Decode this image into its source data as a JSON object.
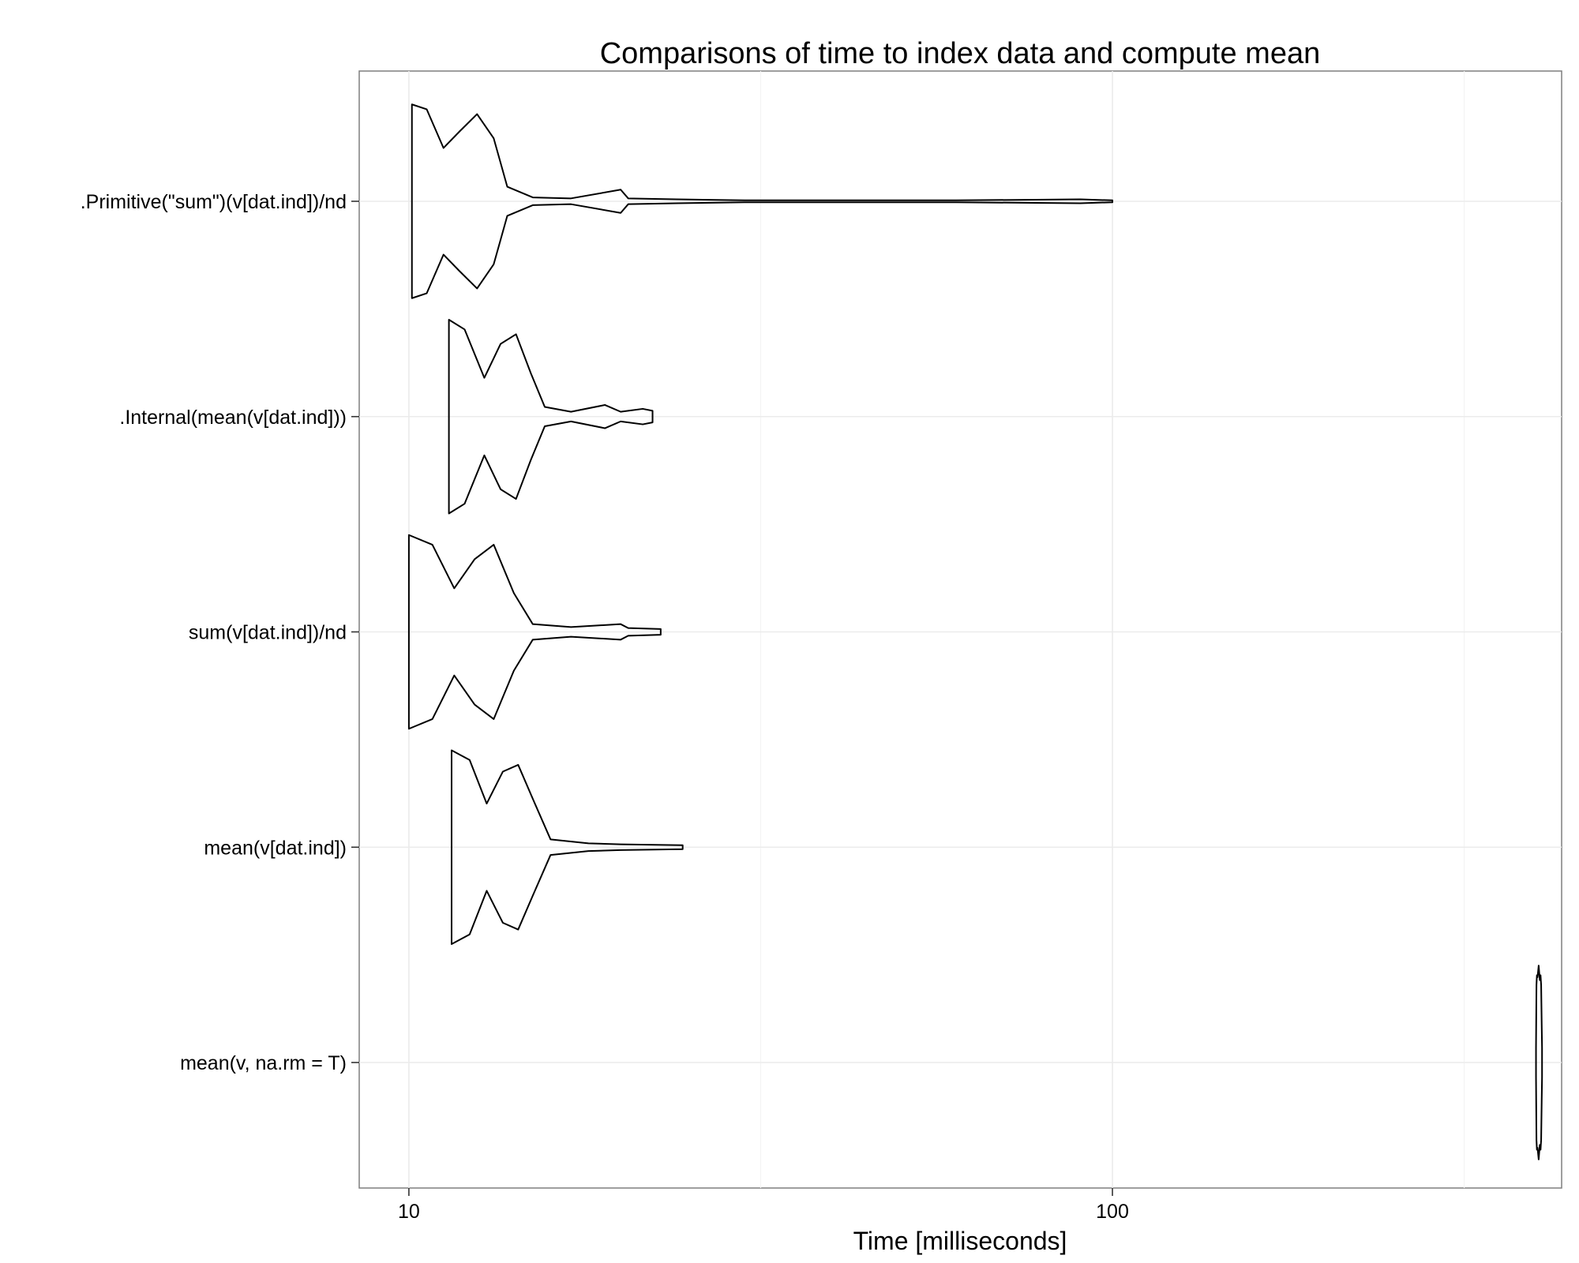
{
  "chart_data": {
    "type": "violin",
    "title": "Comparisons of time to index data and compute mean",
    "xlabel": "Time [milliseconds]",
    "ylabel": "",
    "x_scale": "log10",
    "xlim": [
      8.5,
      435
    ],
    "x_ticks": [
      10,
      100
    ],
    "x_tick_labels": [
      "10",
      "100"
    ],
    "grid": true,
    "categories": [
      ".Primitive(\"sum\")(v[dat.ind])/nd",
      ".Internal(mean(v[dat.ind]))",
      "sum(v[dat.ind])/nd",
      "mean(v[dat.ind])",
      "mean(v, na.rm = T)"
    ],
    "series": [
      {
        "category": ".Primitive(\"sum\")(v[dat.ind])/nd",
        "min": 10.1,
        "max": 100,
        "median": 12.5,
        "density": [
          [
            10.1,
            1.0
          ],
          [
            10.6,
            0.95
          ],
          [
            11.2,
            0.55
          ],
          [
            11.8,
            0.72
          ],
          [
            12.5,
            0.9
          ],
          [
            13.2,
            0.65
          ],
          [
            13.8,
            0.15
          ],
          [
            15,
            0.04
          ],
          [
            17,
            0.03
          ],
          [
            20,
            0.12
          ],
          [
            20.5,
            0.03
          ],
          [
            24,
            0.02
          ],
          [
            30,
            0.01
          ],
          [
            60,
            0.01
          ],
          [
            90,
            0.02
          ],
          [
            100,
            0.01
          ]
        ]
      },
      {
        "category": ".Internal(mean(v[dat.ind]))",
        "min": 11.4,
        "max": 22.2,
        "median": 13.9,
        "density": [
          [
            11.4,
            1.0
          ],
          [
            12,
            0.9
          ],
          [
            12.8,
            0.4
          ],
          [
            13.5,
            0.75
          ],
          [
            14.2,
            0.85
          ],
          [
            14.9,
            0.45
          ],
          [
            15.6,
            0.1
          ],
          [
            17,
            0.05
          ],
          [
            19,
            0.12
          ],
          [
            20,
            0.05
          ],
          [
            21.5,
            0.08
          ],
          [
            22.2,
            0.06
          ]
        ]
      },
      {
        "category": "sum(v[dat.ind])/nd",
        "min": 10,
        "max": 22.8,
        "median": 12.6,
        "density": [
          [
            10,
            1.0
          ],
          [
            10.8,
            0.9
          ],
          [
            11.6,
            0.45
          ],
          [
            12.4,
            0.75
          ],
          [
            13.2,
            0.9
          ],
          [
            14.1,
            0.4
          ],
          [
            15,
            0.08
          ],
          [
            17,
            0.05
          ],
          [
            20,
            0.08
          ],
          [
            20.5,
            0.04
          ],
          [
            22.8,
            0.03
          ]
        ]
      },
      {
        "category": "mean(v[dat.ind])",
        "min": 11.5,
        "max": 24.5,
        "median": 14.0,
        "density": [
          [
            11.5,
            1.0
          ],
          [
            12.2,
            0.9
          ],
          [
            12.9,
            0.45
          ],
          [
            13.6,
            0.78
          ],
          [
            14.3,
            0.85
          ],
          [
            15,
            0.5
          ],
          [
            15.9,
            0.08
          ],
          [
            18,
            0.04
          ],
          [
            20,
            0.03
          ],
          [
            24.5,
            0.02
          ]
        ]
      },
      {
        "category": "mean(v, na.rm = T)",
        "min": 400,
        "max": 410,
        "median": 404,
        "density": [
          [
            400,
            0.15
          ],
          [
            400.6,
            0.8
          ],
          [
            401.2,
            0.9
          ],
          [
            402,
            0.88
          ],
          [
            403.5,
            1.0
          ],
          [
            405,
            0.85
          ],
          [
            406,
            0.9
          ],
          [
            406.8,
            0.8
          ],
          [
            407.5,
            0.4
          ],
          [
            408,
            0.15
          ]
        ]
      }
    ]
  }
}
